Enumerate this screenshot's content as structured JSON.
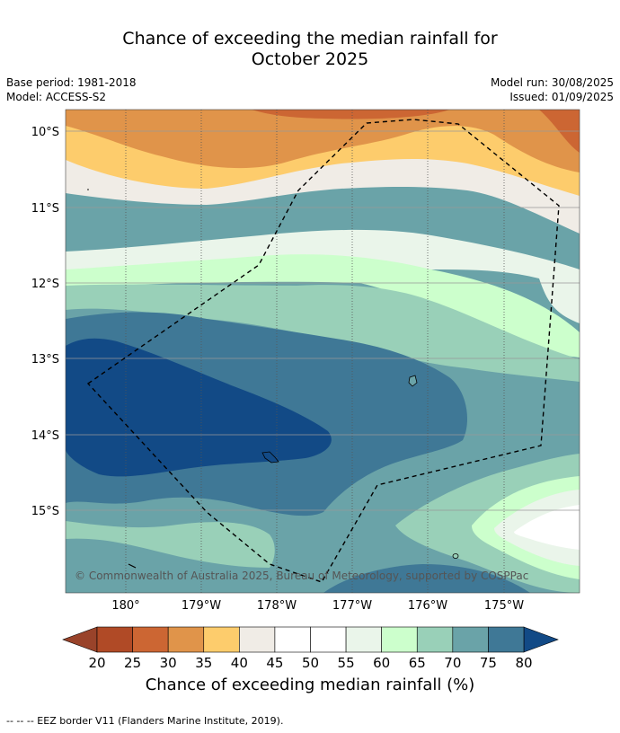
{
  "title_line1": "Chance of exceeding the median rainfall for",
  "title_line2": "October 2025",
  "base_period": "Base period: 1981-2018",
  "model": "Model: ACCESS-S2",
  "model_run": "Model run: 30/08/2025",
  "issued": "Issued: 01/09/2025",
  "copyright": "© Commonwealth of Australia 2025, Bureau of Meteorology, supported by COSPPac",
  "lat_labels": [
    "10°S",
    "11°S",
    "12°S",
    "13°S",
    "14°S",
    "15°S"
  ],
  "lon_labels": [
    "180°",
    "179°W",
    "178°W",
    "177°W",
    "176°W",
    "175°W"
  ],
  "colorbar": {
    "ticks": [
      "20",
      "25",
      "30",
      "35",
      "40",
      "45",
      "50",
      "55",
      "60",
      "65",
      "70",
      "75",
      "80"
    ],
    "colors": [
      "#b04a26",
      "#cc6633",
      "#e0944a",
      "#fdcc6c",
      "#f0ece6",
      "#ffffff",
      "#ffffff",
      "#eaf5ea",
      "#ccffcc",
      "#99d0b8",
      "#6aa3a8",
      "#3f7896"
    ],
    "under_color": "#99432a",
    "over_color": "#124a86",
    "label": "Chance of exceeding median rainfall (%)"
  },
  "legend_footer": "-- -- -- EEZ border V11 (Flanders Marine Institute, 2019).",
  "map_colors": {
    "c25": "#cc6633",
    "c30": "#e0944a",
    "c35": "#fdcc6c",
    "c40": "#f0ece6",
    "c45": "#ffffff",
    "c55": "#eaf5ea",
    "c60": "#ccffcc",
    "c65": "#99d0b8",
    "c70": "#6aa3a8",
    "c75": "#3f7896",
    "c80": "#124a86"
  }
}
